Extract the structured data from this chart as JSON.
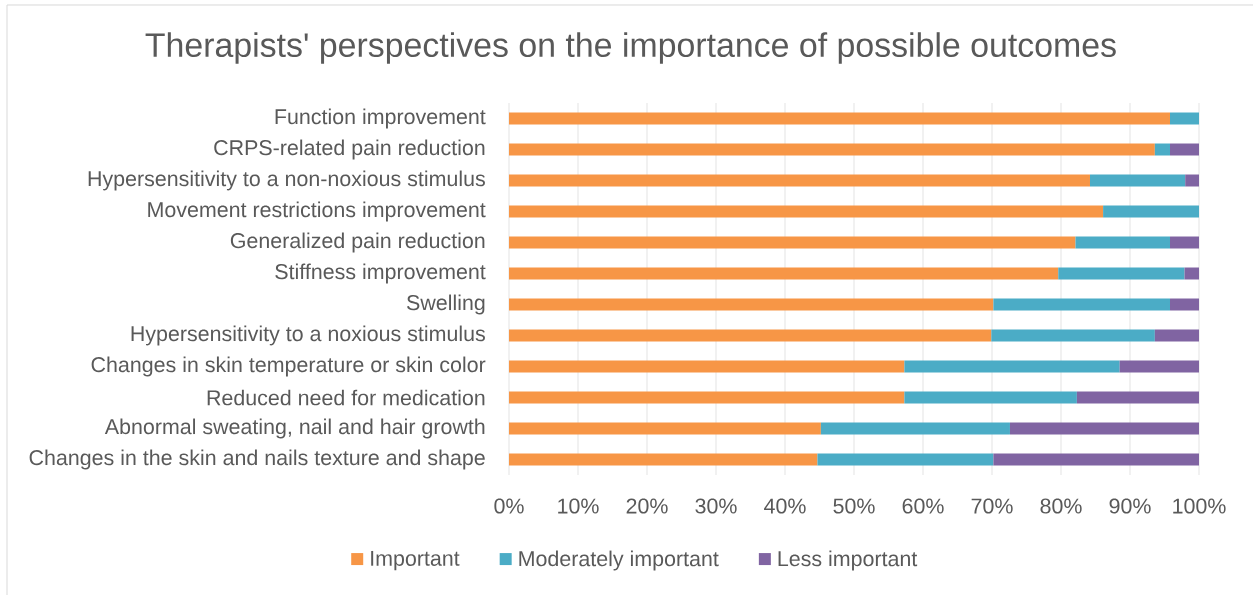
{
  "chart_data": {
    "type": "bar",
    "orientation": "horizontal",
    "stacked": true,
    "title": "Therapists' perspectives on the importance of possible outcomes",
    "categories": [
      "Function improvement",
      "CRPS-related pain reduction",
      "Hypersensitivity to a non-noxious stimulus",
      "Movement restrictions improvement",
      "Generalized pain reduction",
      "Stiffness improvement",
      "Swelling",
      "Hypersensitivity to a noxious stimulus",
      "Changes in skin temperature or skin color",
      "Reduced need for medication",
      "Abnormal sweating, nail and hair growth",
      "Changes in the skin and nails texture and shape"
    ],
    "series": [
      {
        "name": "Important",
        "color": "#f79646",
        "values": [
          95.8,
          93.6,
          84.2,
          86.1,
          82.1,
          79.6,
          70.2,
          69.9,
          57.3,
          57.3,
          45.2,
          44.7
        ]
      },
      {
        "name": "Moderately important",
        "color": "#4bacc6",
        "values": [
          4.2,
          2.2,
          13.8,
          13.9,
          13.7,
          18.3,
          25.6,
          23.7,
          31.2,
          25.0,
          27.4,
          25.5
        ]
      },
      {
        "name": "Less important",
        "color": "#8064a2",
        "values": [
          null,
          4.2,
          2.0,
          null,
          4.2,
          2.1,
          4.2,
          6.4,
          11.5,
          17.7,
          27.4,
          29.8
        ]
      }
    ],
    "xlim": [
      0,
      100
    ],
    "xticks": [
      {
        "value": 0,
        "label": "0%"
      },
      {
        "value": 10,
        "label": "10%"
      },
      {
        "value": 20,
        "label": "20%"
      },
      {
        "value": 30,
        "label": "30%"
      },
      {
        "value": 40,
        "label": "40%"
      },
      {
        "value": 50,
        "label": "50%"
      },
      {
        "value": 60,
        "label": "60%"
      },
      {
        "value": 70,
        "label": "70%"
      },
      {
        "value": 80,
        "label": "80%"
      },
      {
        "value": 90,
        "label": "90%"
      },
      {
        "value": 100,
        "label": "100%"
      }
    ],
    "grid": "x",
    "legend": "bottom"
  }
}
